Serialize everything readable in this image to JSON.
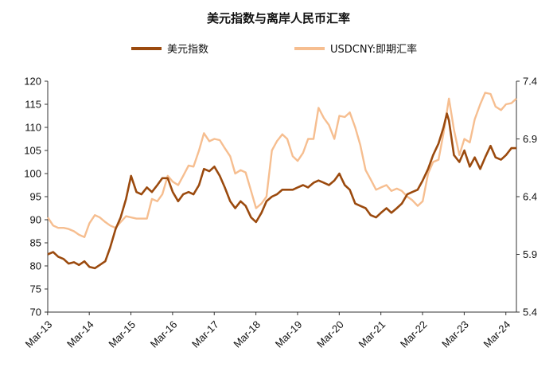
{
  "chart_data": {
    "type": "line",
    "title": "美元指数与离岸人民币汇率",
    "x_ticks": [
      "Mar-13",
      "Mar-14",
      "Mar-15",
      "Mar-16",
      "Mar-17",
      "Mar-18",
      "Mar-19",
      "Mar-20",
      "Mar-21",
      "Mar-22",
      "Mar-23",
      "Mar-24"
    ],
    "x_range": [
      2013.17,
      2024.42
    ],
    "left_axis": {
      "ylim": [
        70,
        120
      ],
      "ticks": [
        "70",
        "75",
        "80",
        "85",
        "90",
        "95",
        "100",
        "105",
        "110",
        "115",
        "120"
      ]
    },
    "right_axis": {
      "ylim": [
        5.4,
        7.4
      ],
      "ticks": [
        "5.4",
        "5.9",
        "6.4",
        "6.9",
        "7.4"
      ]
    },
    "legend_position": "top-center",
    "grid": false,
    "series": [
      {
        "name": "美元指数",
        "axis": "left",
        "color": "#9B4A0E",
        "x": [
          2013.17,
          2013.3,
          2013.42,
          2013.55,
          2013.67,
          2013.8,
          2013.92,
          2014.05,
          2014.17,
          2014.3,
          2014.42,
          2014.55,
          2014.67,
          2014.8,
          2014.92,
          2015.05,
          2015.17,
          2015.3,
          2015.42,
          2015.55,
          2015.67,
          2015.8,
          2015.92,
          2016.05,
          2016.17,
          2016.3,
          2016.42,
          2016.55,
          2016.67,
          2016.8,
          2016.92,
          2017.05,
          2017.17,
          2017.3,
          2017.42,
          2017.55,
          2017.67,
          2017.8,
          2017.92,
          2018.05,
          2018.17,
          2018.3,
          2018.42,
          2018.55,
          2018.67,
          2018.8,
          2018.92,
          2019.05,
          2019.17,
          2019.3,
          2019.42,
          2019.55,
          2019.67,
          2019.8,
          2019.92,
          2020.05,
          2020.17,
          2020.22,
          2020.3,
          2020.42,
          2020.55,
          2020.67,
          2020.8,
          2020.92,
          2021.05,
          2021.17,
          2021.3,
          2021.42,
          2021.55,
          2021.67,
          2021.8,
          2021.92,
          2022.05,
          2022.17,
          2022.3,
          2022.42,
          2022.55,
          2022.67,
          2022.75,
          2022.8,
          2022.92,
          2023.05,
          2023.17,
          2023.3,
          2023.42,
          2023.55,
          2023.67,
          2023.8,
          2023.92,
          2024.05,
          2024.17,
          2024.3,
          2024.42
        ],
        "values": [
          82.5,
          83.0,
          82.0,
          81.5,
          80.5,
          80.8,
          80.2,
          81.0,
          79.8,
          79.5,
          80.2,
          81.0,
          84.0,
          88.0,
          90.5,
          94.5,
          99.5,
          96.0,
          95.5,
          97.0,
          96.0,
          97.5,
          99.0,
          99.0,
          96.0,
          94.0,
          95.5,
          96.0,
          95.5,
          97.5,
          101.0,
          100.5,
          101.5,
          99.5,
          97.0,
          94.0,
          92.5,
          94.0,
          93.0,
          90.5,
          89.5,
          91.5,
          94.0,
          95.0,
          95.5,
          96.5,
          96.5,
          96.5,
          97.0,
          97.5,
          97.0,
          98.0,
          98.5,
          98.0,
          97.5,
          98.5,
          100.0,
          99.0,
          97.5,
          96.5,
          93.5,
          93.0,
          92.5,
          91.0,
          90.5,
          91.5,
          92.5,
          91.5,
          92.5,
          93.5,
          95.5,
          96.0,
          96.5,
          98.5,
          101.0,
          104.0,
          106.5,
          110.0,
          113.0,
          111.5,
          104.0,
          102.5,
          105.0,
          101.5,
          103.5,
          101.0,
          103.5,
          106.0,
          103.5,
          103.0,
          104.0,
          105.5,
          105.5
        ]
      },
      {
        "name": "USDCNY:即期汇率",
        "axis": "right",
        "color": "#F6BE90",
        "x": [
          2013.17,
          2013.3,
          2013.42,
          2013.55,
          2013.67,
          2013.8,
          2013.92,
          2014.05,
          2014.17,
          2014.3,
          2014.42,
          2014.55,
          2014.67,
          2014.8,
          2014.92,
          2015.05,
          2015.17,
          2015.3,
          2015.42,
          2015.55,
          2015.67,
          2015.8,
          2015.92,
          2016.05,
          2016.17,
          2016.3,
          2016.42,
          2016.55,
          2016.67,
          2016.8,
          2016.92,
          2017.05,
          2017.17,
          2017.3,
          2017.42,
          2017.55,
          2017.67,
          2017.8,
          2017.92,
          2018.05,
          2018.17,
          2018.3,
          2018.42,
          2018.55,
          2018.67,
          2018.8,
          2018.92,
          2019.05,
          2019.17,
          2019.3,
          2019.42,
          2019.55,
          2019.67,
          2019.8,
          2019.92,
          2020.05,
          2020.17,
          2020.3,
          2020.42,
          2020.55,
          2020.67,
          2020.8,
          2020.92,
          2021.05,
          2021.17,
          2021.3,
          2021.42,
          2021.55,
          2021.67,
          2021.8,
          2021.92,
          2022.05,
          2022.17,
          2022.3,
          2022.42,
          2022.55,
          2022.67,
          2022.8,
          2022.92,
          2023.05,
          2023.17,
          2023.3,
          2023.42,
          2023.55,
          2023.67,
          2023.8,
          2023.92,
          2024.05,
          2024.17,
          2024.3,
          2024.42
        ],
        "values": [
          6.22,
          6.15,
          6.13,
          6.13,
          6.12,
          6.1,
          6.07,
          6.05,
          6.17,
          6.24,
          6.22,
          6.18,
          6.15,
          6.13,
          6.18,
          6.23,
          6.22,
          6.21,
          6.21,
          6.21,
          6.38,
          6.36,
          6.42,
          6.58,
          6.53,
          6.5,
          6.58,
          6.67,
          6.66,
          6.8,
          6.95,
          6.88,
          6.9,
          6.89,
          6.82,
          6.75,
          6.6,
          6.63,
          6.61,
          6.45,
          6.3,
          6.34,
          6.4,
          6.8,
          6.88,
          6.94,
          6.9,
          6.75,
          6.71,
          6.78,
          6.9,
          6.9,
          7.17,
          7.08,
          7.02,
          6.9,
          7.1,
          7.09,
          7.13,
          7.0,
          6.85,
          6.63,
          6.55,
          6.46,
          6.48,
          6.5,
          6.45,
          6.47,
          6.45,
          6.4,
          6.37,
          6.32,
          6.36,
          6.6,
          6.7,
          6.72,
          6.95,
          7.25,
          6.98,
          6.76,
          6.9,
          6.87,
          7.07,
          7.2,
          7.3,
          7.29,
          7.18,
          7.15,
          7.2,
          7.21,
          7.25
        ]
      }
    ]
  }
}
